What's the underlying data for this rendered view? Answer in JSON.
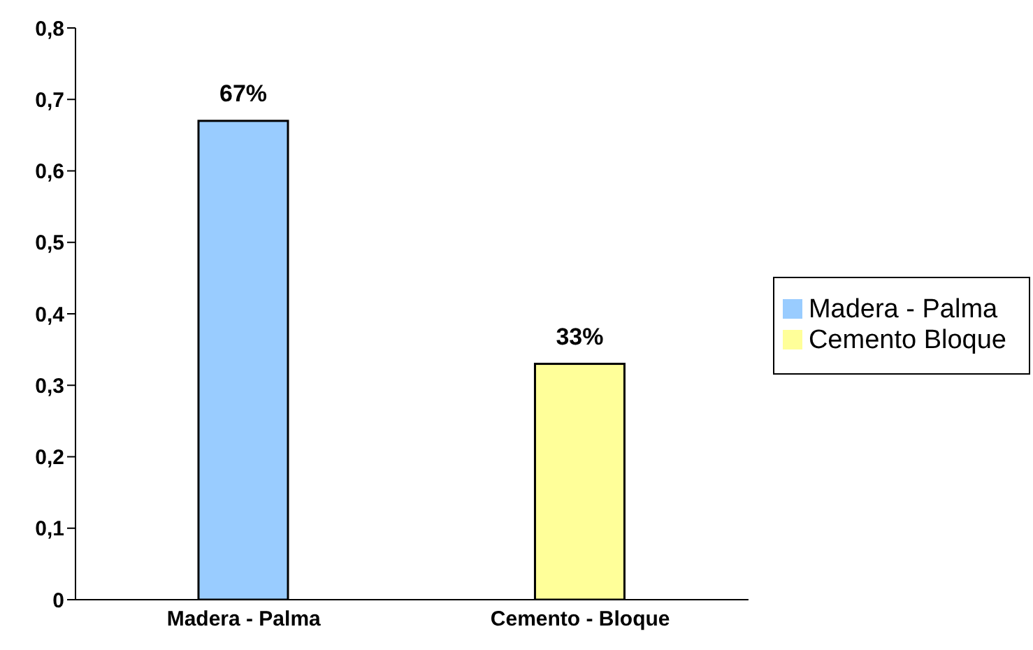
{
  "chart_data": {
    "type": "bar",
    "categories": [
      "Madera - Palma",
      "Cemento - Bloque"
    ],
    "series": [
      {
        "name": "Madera - Palma",
        "color": "#99ccff",
        "values": [
          0.67,
          null
        ],
        "value_labels": [
          "67%",
          null
        ]
      },
      {
        "name": "Cemento Bloque",
        "color": "#ffff99",
        "values": [
          null,
          0.33
        ],
        "value_labels": [
          null,
          "33%"
        ]
      }
    ],
    "ylim": [
      0,
      0.8
    ],
    "yticks": [
      0,
      {
        "value": 0.1,
        "label": "0,1"
      },
      {
        "value": 0.2,
        "label": "0,2"
      },
      {
        "value": 0.3,
        "label": "0,3"
      },
      {
        "value": 0.4,
        "label": "0,4"
      },
      {
        "value": 0.5,
        "label": "0,5"
      },
      {
        "value": 0.6,
        "label": "0,6"
      },
      {
        "value": 0.7,
        "label": "0,7"
      },
      {
        "value": 0.8,
        "label": "0,8"
      }
    ],
    "grid": false,
    "legend": "right"
  }
}
